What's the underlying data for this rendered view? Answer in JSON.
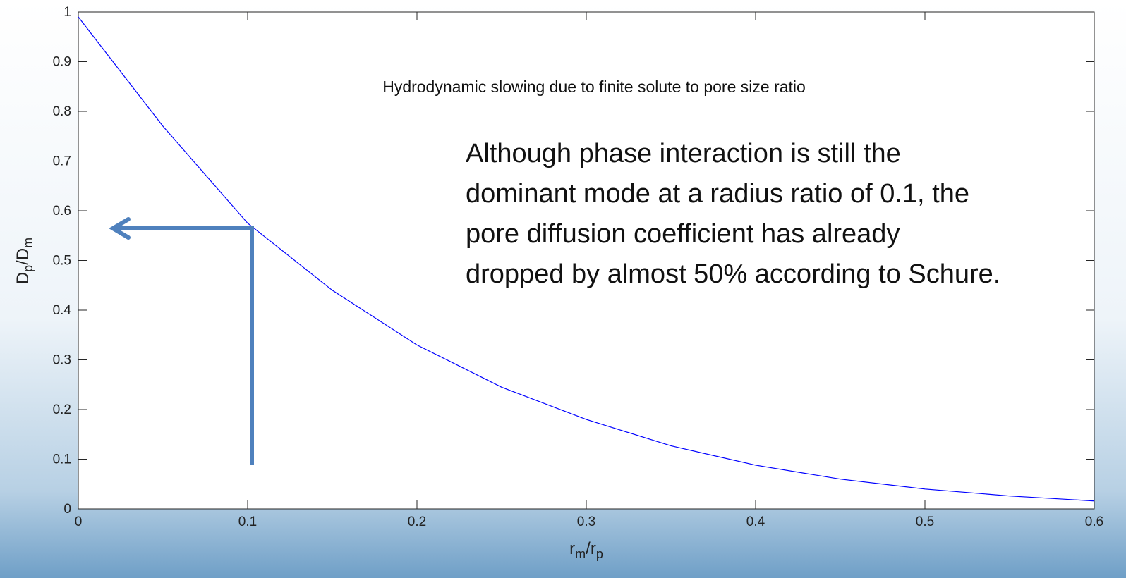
{
  "chart_data": {
    "type": "line",
    "title": "Hydrodynamic slowing due to finite solute to pore size ratio",
    "annotation": [
      "Although phase interaction is still the",
      "dominant mode at a radius ratio of 0.1, the",
      "pore diffusion coefficient has already",
      "dropped by almost 50% according to Schure."
    ],
    "xlabel": [
      {
        "text": "r"
      },
      {
        "text": "m",
        "sub": true
      },
      {
        "text": "/r"
      },
      {
        "text": "p",
        "sub": true
      }
    ],
    "ylabel": [
      {
        "text": "D"
      },
      {
        "text": "p",
        "sub": true
      },
      {
        "text": "/D"
      },
      {
        "text": "m",
        "sub": true
      }
    ],
    "x": [
      0,
      0.05,
      0.1,
      0.15,
      0.2,
      0.25,
      0.3,
      0.35,
      0.4,
      0.45,
      0.5,
      0.55,
      0.6
    ],
    "series": [
      {
        "color": "#0000ff",
        "values": [
          0.99,
          0.77,
          0.575,
          0.44,
          0.33,
          0.245,
          0.18,
          0.127,
          0.088,
          0.06,
          0.04,
          0.026,
          0.016
        ]
      }
    ],
    "xlim": [
      0,
      0.6
    ],
    "xticks": [
      0,
      0.1,
      0.2,
      0.3,
      0.4,
      0.5,
      0.6
    ],
    "ylim": [
      0,
      1
    ],
    "yticks": [
      0,
      0.1,
      0.2,
      0.3,
      0.4,
      0.5,
      0.6,
      0.7,
      0.8,
      0.9,
      1
    ]
  }
}
